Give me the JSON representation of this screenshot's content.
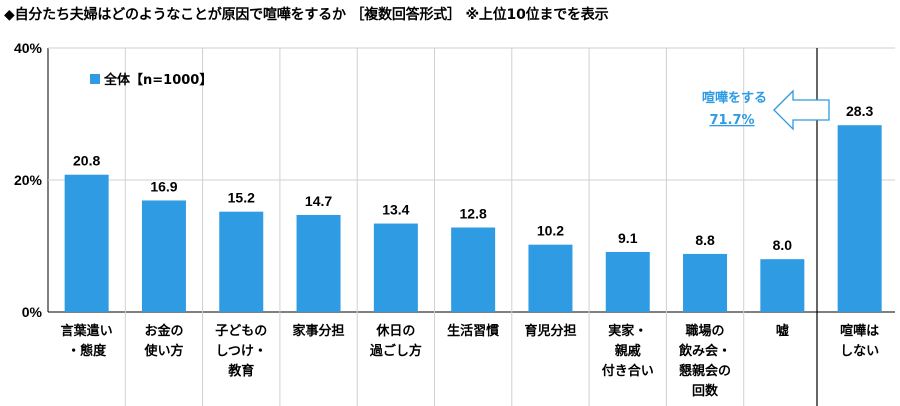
{
  "title": "◆自分たち夫婦はどのようなことが原因で喧嘩をするか ［複数回答形式］ ※上位10位までを表示",
  "legend": {
    "label": "全体【n=1000】"
  },
  "callout": {
    "line1": "喧嘩をする",
    "line2": "71.7%"
  },
  "colors": {
    "bar": "#2e9be3",
    "callout": "#2e9be3",
    "grid": "#d0d0d0",
    "axis": "#000000"
  },
  "chart_data": {
    "type": "bar",
    "ylim": [
      0,
      40
    ],
    "yticks": [
      "0%",
      "20%",
      "40%"
    ],
    "ytick_values": [
      0,
      20,
      40
    ],
    "grid": true,
    "legend_placement": "top-left",
    "categories": [
      [
        "言葉遣い",
        "・態度"
      ],
      [
        "お金の",
        "使い方"
      ],
      [
        "子どもの",
        "しつけ・",
        "教育"
      ],
      [
        "家事分担"
      ],
      [
        "休日の",
        "過ごし方"
      ],
      [
        "生活習慣"
      ],
      [
        "育児分担"
      ],
      [
        "実家・",
        "親戚",
        "付き合い"
      ],
      [
        "職場の",
        "飲み会・",
        "懇親会の",
        "回数"
      ],
      [
        "嘘"
      ],
      [
        "喧嘩は",
        "しない"
      ]
    ],
    "series": [
      {
        "name": "全体【n=1000】",
        "values": [
          20.8,
          16.9,
          15.2,
          14.7,
          13.4,
          12.8,
          10.2,
          9.1,
          8.8,
          8.0,
          28.3
        ]
      }
    ],
    "data_labels": [
      "20.8",
      "16.9",
      "15.2",
      "14.7",
      "13.4",
      "12.8",
      "10.2",
      "9.1",
      "8.8",
      "8.0",
      "28.3"
    ]
  }
}
